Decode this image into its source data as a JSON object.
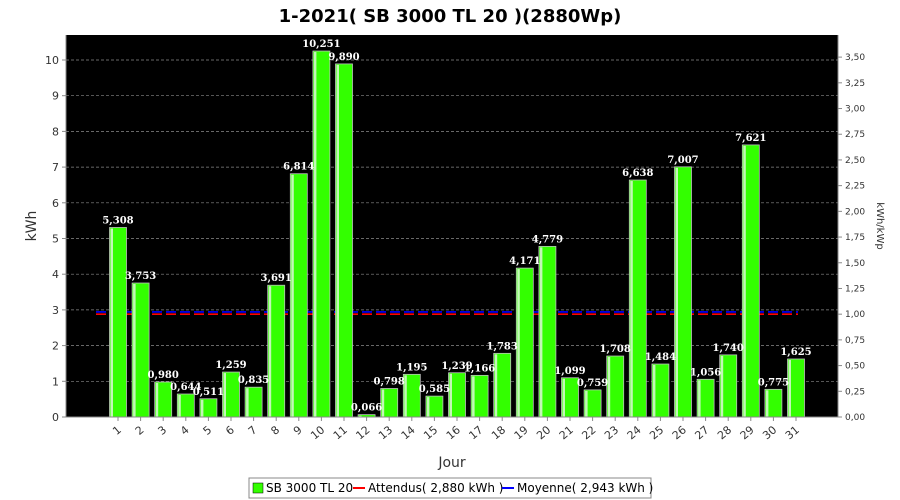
{
  "chart_data": {
    "type": "bar",
    "title": "1-2021( SB 3000 TL 20 )(2880Wp)",
    "xlabel": "Jour",
    "ylabel": "kWh",
    "y2label": "kWh/kWp",
    "ylim": [
      0,
      10.7
    ],
    "y2lim": [
      0,
      3.715
    ],
    "yticks": [
      "0",
      "1",
      "2",
      "3",
      "4",
      "5",
      "6",
      "7",
      "8",
      "9",
      "10"
    ],
    "y2ticks": [
      "0,00",
      "0,25",
      "0,50",
      "0,75",
      "1,00",
      "1,25",
      "1,50",
      "1,75",
      "2,00",
      "2,25",
      "2,50",
      "2,75",
      "3,00",
      "3,25",
      "3,50"
    ],
    "categories": [
      "1",
      "2",
      "3",
      "4",
      "5",
      "6",
      "7",
      "8",
      "9",
      "10",
      "11",
      "12",
      "13",
      "14",
      "15",
      "16",
      "17",
      "18",
      "19",
      "20",
      "21",
      "22",
      "23",
      "24",
      "25",
      "26",
      "27",
      "28",
      "29",
      "30",
      "31"
    ],
    "series": [
      {
        "name": "SB 3000 TL 20",
        "color": "#33ff00",
        "values": [
          5.308,
          3.753,
          0.98,
          0.644,
          0.511,
          1.259,
          0.835,
          3.691,
          6.814,
          10.251,
          9.89,
          0.066,
          0.798,
          1.195,
          0.585,
          1.239,
          1.166,
          1.783,
          4.171,
          4.779,
          1.099,
          0.759,
          1.708,
          6.638,
          1.484,
          7.007,
          1.056,
          1.74,
          7.621,
          0.775,
          1.625
        ],
        "labels": [
          "5,308",
          "3,753",
          "0,980",
          "0,644",
          "0,511",
          "1,259",
          "0,835",
          "3,691",
          "6,814",
          "10,251",
          "9,890",
          "0,066",
          "0,798",
          "1,195",
          "0,585",
          "1,239",
          "1,166",
          "1,783",
          "4,171",
          "4,779",
          "1,099",
          "0,759",
          "1,708",
          "6,638",
          "1,484",
          "7,007",
          "1,056",
          "1,740",
          "7,621",
          "0,775",
          "1,625"
        ]
      }
    ],
    "reference_lines": [
      {
        "name": "Attendus( 2,880 kWh )",
        "value": 2.88,
        "color": "#ff0000"
      },
      {
        "name": "Moyenne( 2,943 kWh )",
        "value": 2.943,
        "color": "#0000ff"
      }
    ],
    "grid": true,
    "legend_position": "bottom",
    "plot_background": "#000000"
  }
}
